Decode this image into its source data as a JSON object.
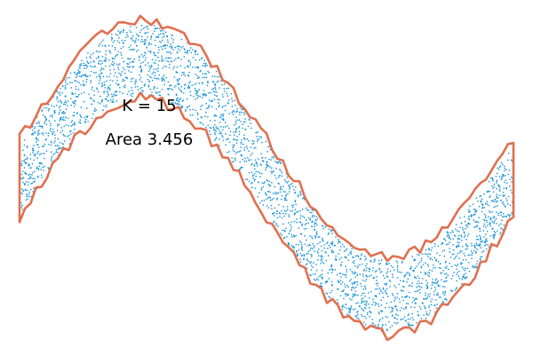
{
  "chart_data": {
    "type": "scatter",
    "title": "",
    "xlabel": "",
    "ylabel": "",
    "axes_visible": false,
    "grid": false,
    "xlim": [
      0,
      6.283
    ],
    "ylim": [
      -1.35,
      1.35
    ],
    "annotations": {
      "k_text": "K = 15",
      "area_text": "Area 3.456"
    },
    "series": [
      {
        "type": "scatter",
        "color": "#0e8fd6",
        "marker": "small-dot",
        "point_count": 3000,
        "model": "y = sin(x) + noise",
        "noise_half_width": 0.3,
        "x_range": [
          0,
          6.283
        ]
      },
      {
        "type": "hull-outline",
        "color": "#e07050",
        "boundary_offset": 0.33,
        "jaggedness": 0.05
      }
    ]
  }
}
